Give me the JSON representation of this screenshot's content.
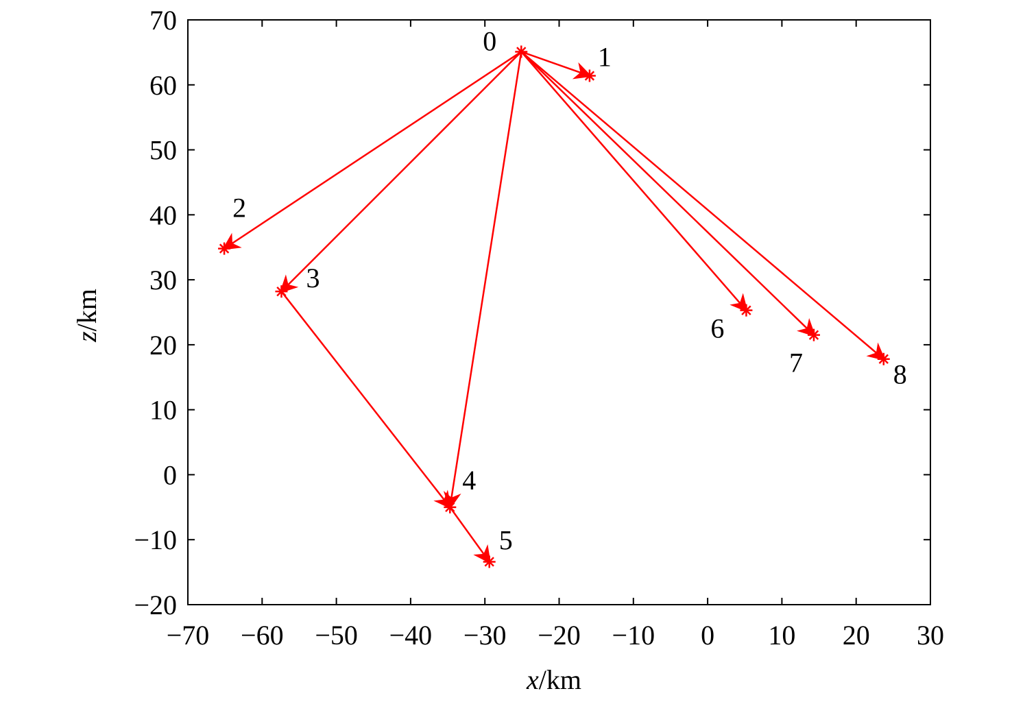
{
  "chart_data": {
    "type": "scatter",
    "title": "",
    "xlabel_var": "x",
    "xlabel_unit": "/km",
    "ylabel_var": "z",
    "ylabel_unit": "/km",
    "xlim": [
      -70,
      30
    ],
    "ylim": [
      -20,
      70
    ],
    "xticks": [
      -70,
      -60,
      -50,
      -40,
      -30,
      -20,
      -10,
      0,
      10,
      20,
      30
    ],
    "yticks": [
      -20,
      -10,
      0,
      10,
      20,
      30,
      40,
      50,
      60,
      70
    ],
    "grid": false,
    "color": "#ff0000",
    "marker": "asterisk",
    "points": [
      {
        "label": "0",
        "x": -25.1,
        "z": 65.1
      },
      {
        "label": "1",
        "x": -15.9,
        "z": 61.4
      },
      {
        "label": "2",
        "x": -65.1,
        "z": 34.8
      },
      {
        "label": "3",
        "x": -57.4,
        "z": 28.2
      },
      {
        "label": "4",
        "x": -34.7,
        "z": -5.0
      },
      {
        "label": "5",
        "x": -29.4,
        "z": -13.4
      },
      {
        "label": "6",
        "x": 5.2,
        "z": 25.3
      },
      {
        "label": "7",
        "x": 14.3,
        "z": 21.5
      },
      {
        "label": "8",
        "x": 23.7,
        "z": 17.8
      }
    ],
    "arrows": [
      [
        "0",
        "1"
      ],
      [
        "0",
        "2"
      ],
      [
        "0",
        "3"
      ],
      [
        "0",
        "4"
      ],
      [
        "0",
        "6"
      ],
      [
        "0",
        "7"
      ],
      [
        "0",
        "8"
      ],
      [
        "3",
        "4"
      ],
      [
        "4",
        "5"
      ]
    ]
  }
}
